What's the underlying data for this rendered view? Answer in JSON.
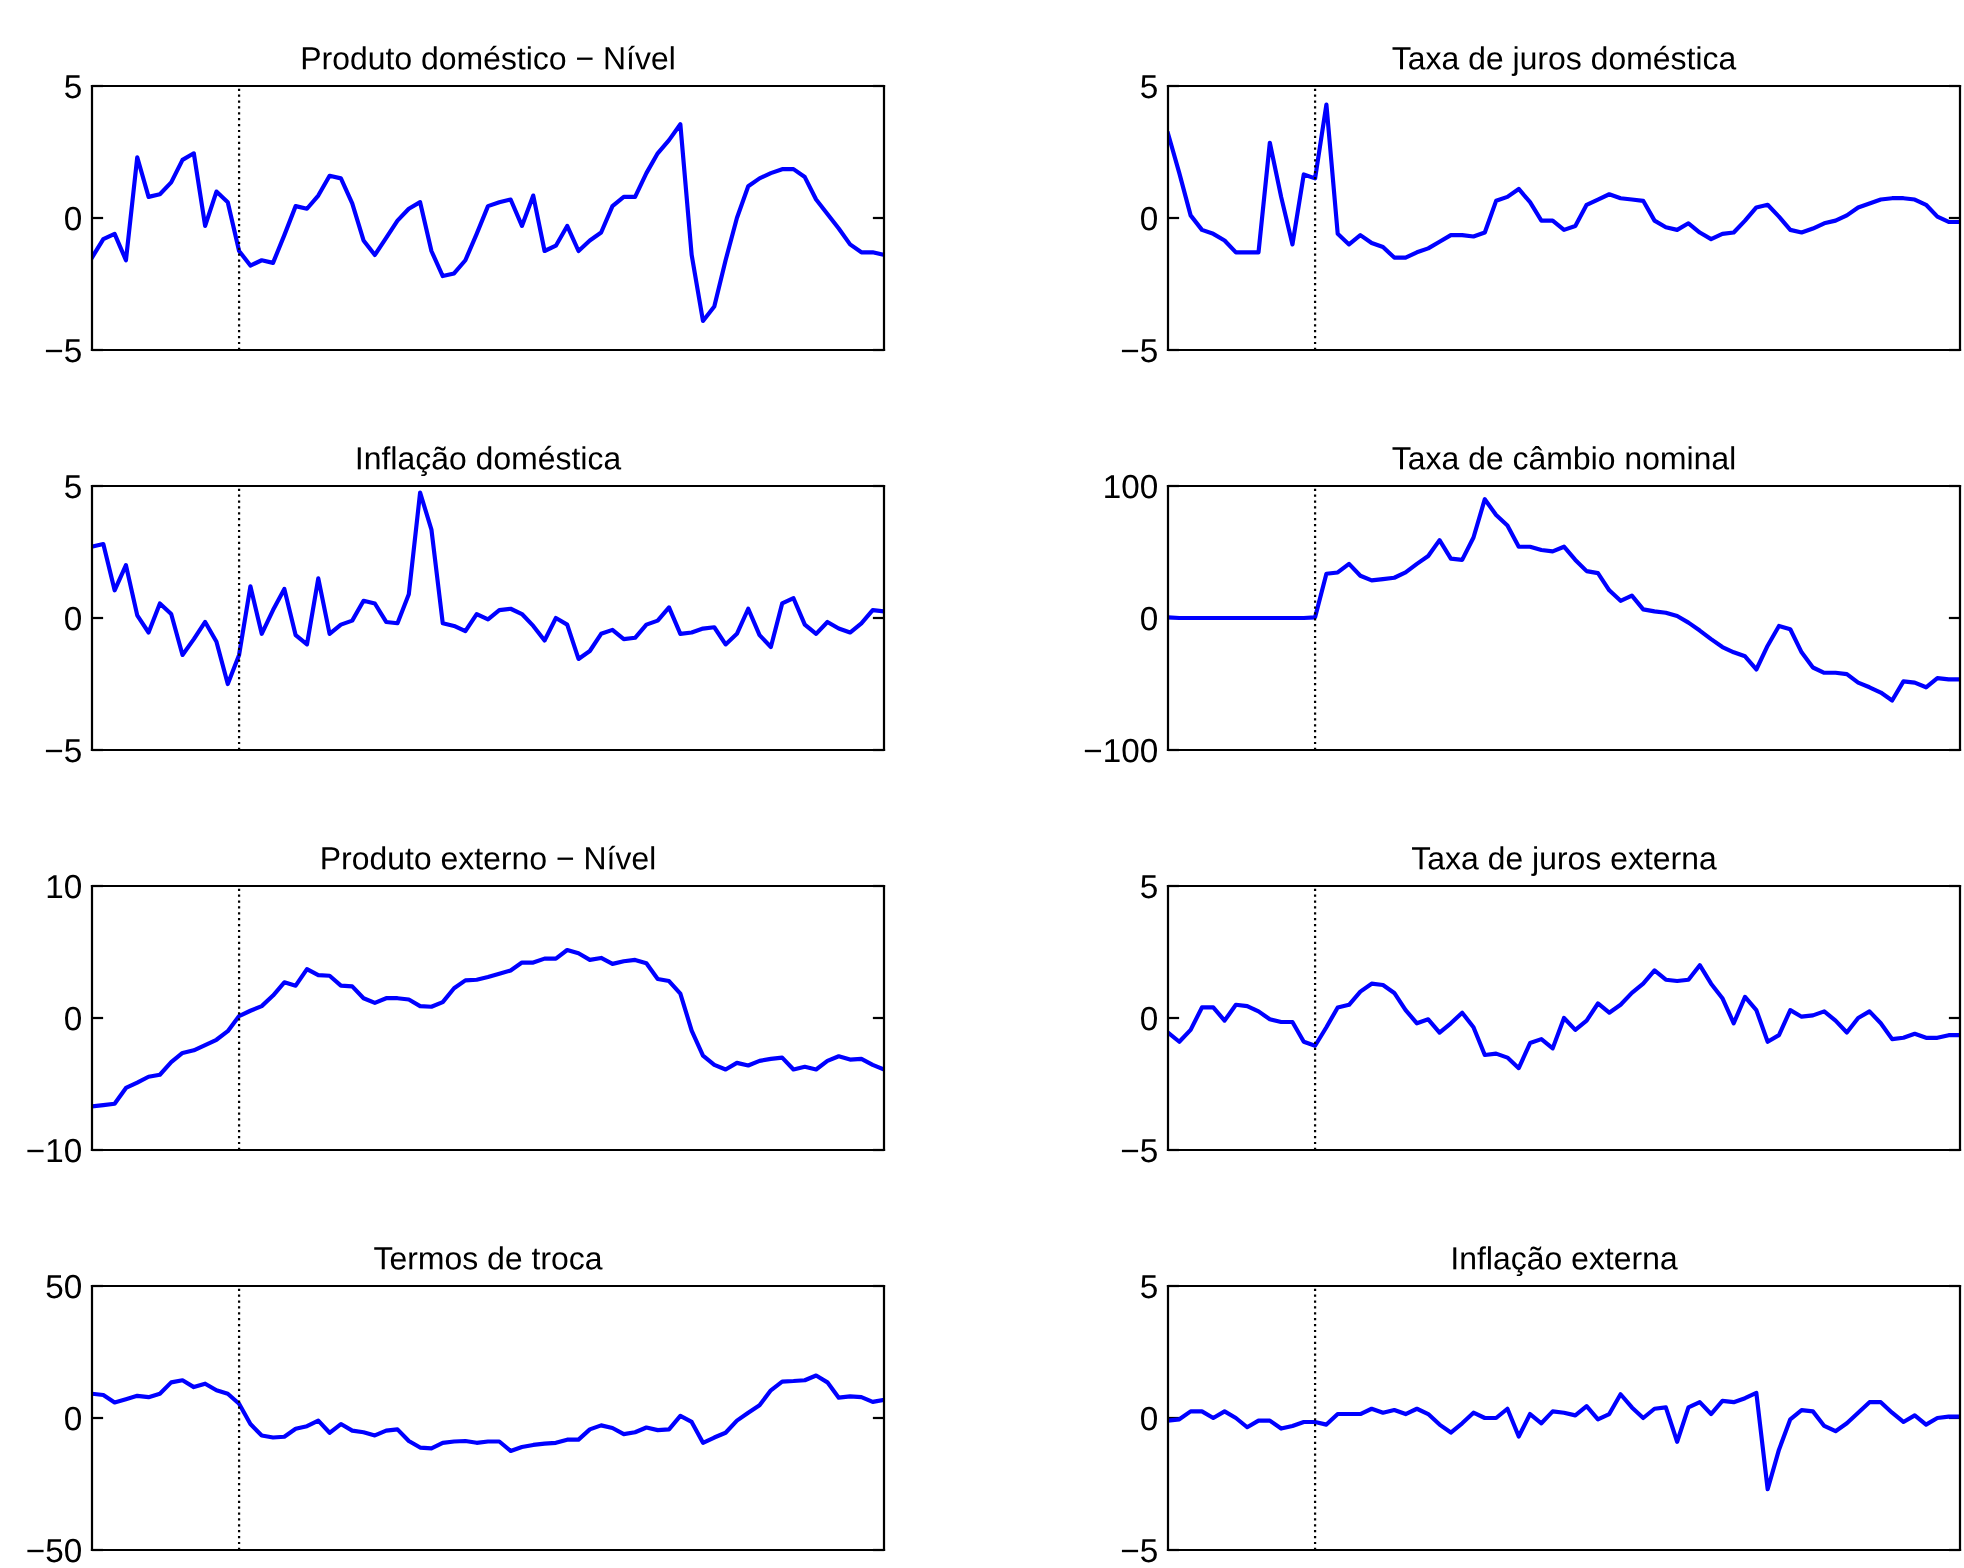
{
  "chart_data": [
    {
      "type": "line",
      "title": "Produto doméstico − Nível",
      "categories": [
        null,
        null,
        null,
        null,
        null,
        null,
        null,
        null,
        null,
        null,
        null,
        null,
        null,
        null,
        null,
        null,
        null,
        null,
        null,
        null,
        null,
        null,
        null,
        null,
        null,
        null,
        null,
        null,
        null,
        null,
        null,
        null,
        null,
        null,
        null,
        null,
        null,
        null,
        null,
        null,
        null,
        null,
        null,
        null,
        null,
        null,
        null,
        null,
        null,
        null,
        null,
        null,
        null,
        null,
        null,
        null,
        null,
        null,
        null,
        null,
        null,
        null,
        null,
        null,
        null,
        null,
        null,
        null,
        null,
        null,
        null
      ],
      "ylim": [
        -5,
        5
      ],
      "yticks": [
        {
          "value": -5,
          "label": "−5"
        },
        0,
        5
      ],
      "tick_labels": "y",
      "series": [
        {
          "color": "#0000ff",
          "values": [
            -1.5,
            -0.8,
            -0.6,
            -1.6,
            2.3,
            0.8,
            0.9,
            1.35,
            2.2,
            2.45,
            -0.3,
            1.0,
            0.6,
            -1.25,
            -1.8,
            -1.6,
            -1.7,
            -0.65,
            0.45,
            0.35,
            0.85,
            1.6,
            1.5,
            0.55,
            -0.85,
            -1.4,
            -0.75,
            -0.1,
            0.35,
            0.6,
            -1.25,
            -2.2,
            -2.1,
            -1.6,
            -0.6,
            0.45,
            0.6,
            0.7,
            -0.3,
            0.85,
            -1.25,
            -1.05,
            -0.3,
            -1.25,
            -0.85,
            -0.55,
            0.45,
            0.8,
            0.8,
            1.7,
            2.45,
            2.95,
            3.55,
            -1.4,
            -3.9,
            -3.35,
            -1.6,
            0.0,
            1.2,
            1.5,
            1.7,
            1.85,
            1.85,
            1.55,
            0.7,
            0.15,
            -0.4,
            -1.0,
            -1.3,
            -1.3,
            -1.4
          ]
        }
      ]
    },
    {
      "type": "line",
      "title": "Taxa de juros doméstica",
      "categories": [
        null,
        null,
        null,
        null,
        null,
        null,
        null,
        null,
        null,
        null,
        null,
        null,
        null,
        null,
        null,
        null,
        null,
        null,
        null,
        null,
        null,
        null,
        null,
        null,
        null,
        null,
        null,
        null,
        null,
        null,
        null,
        null,
        null,
        null,
        null,
        null,
        null,
        null,
        null,
        null,
        null,
        null,
        null,
        null,
        null,
        null,
        null,
        null,
        null,
        null,
        null,
        null,
        null,
        null,
        null,
        null,
        null,
        null,
        null,
        null,
        null,
        null,
        null,
        null,
        null,
        null,
        null,
        null,
        null,
        null,
        null
      ],
      "ylim": [
        -5,
        5
      ],
      "yticks": [
        {
          "value": -5,
          "label": "−5"
        },
        0,
        5
      ],
      "tick_labels": "y",
      "series": [
        {
          "color": "#0000ff",
          "values": [
            3.2,
            1.7,
            0.1,
            -0.45,
            -0.6,
            -0.85,
            -1.3,
            -1.3,
            -1.3,
            2.85,
            0.8,
            -1.0,
            1.65,
            1.5,
            4.3,
            -0.6,
            -1.0,
            -0.65,
            -0.95,
            -1.1,
            -1.5,
            -1.5,
            -1.3,
            -1.15,
            -0.9,
            -0.65,
            -0.65,
            -0.7,
            -0.55,
            0.65,
            0.8,
            1.1,
            0.6,
            -0.1,
            -0.1,
            -0.45,
            -0.3,
            0.5,
            0.7,
            0.9,
            0.75,
            0.7,
            0.65,
            -0.1,
            -0.35,
            -0.45,
            -0.2,
            -0.55,
            -0.8,
            -0.6,
            -0.55,
            -0.1,
            0.4,
            0.5,
            0.05,
            -0.45,
            -0.55,
            -0.4,
            -0.2,
            -0.1,
            0.1,
            0.4,
            0.55,
            0.7,
            0.75,
            0.75,
            0.7,
            0.5,
            0.05,
            -0.15,
            -0.15
          ]
        }
      ]
    },
    {
      "type": "line",
      "title": "Inflação doméstica",
      "categories": [
        null,
        null,
        null,
        null,
        null,
        null,
        null,
        null,
        null,
        null,
        null,
        null,
        null,
        null,
        null,
        null,
        null,
        null,
        null,
        null,
        null,
        null,
        null,
        null,
        null,
        null,
        null,
        null,
        null,
        null,
        null,
        null,
        null,
        null,
        null,
        null,
        null,
        null,
        null,
        null,
        null,
        null,
        null,
        null,
        null,
        null,
        null,
        null,
        null,
        null,
        null,
        null,
        null,
        null,
        null,
        null,
        null,
        null,
        null,
        null,
        null,
        null,
        null,
        null,
        null,
        null,
        null,
        null,
        null,
        null,
        null
      ],
      "ylim": [
        -5,
        5
      ],
      "yticks": [
        {
          "value": -5,
          "label": "−5"
        },
        0,
        5
      ],
      "tick_labels": "y",
      "series": [
        {
          "color": "#0000ff",
          "values": [
            2.7,
            2.8,
            1.05,
            2.0,
            0.1,
            -0.55,
            0.55,
            0.15,
            -1.4,
            -0.8,
            -0.15,
            -0.9,
            -2.5,
            -1.4,
            1.2,
            -0.6,
            0.3,
            1.1,
            -0.65,
            -1.0,
            1.5,
            -0.6,
            -0.25,
            -0.1,
            0.65,
            0.55,
            -0.15,
            -0.2,
            0.9,
            4.75,
            3.35,
            -0.2,
            -0.3,
            -0.5,
            0.15,
            -0.05,
            0.3,
            0.35,
            0.15,
            -0.3,
            -0.85,
            0.0,
            -0.25,
            -1.55,
            -1.25,
            -0.6,
            -0.45,
            -0.8,
            -0.75,
            -0.25,
            -0.1,
            0.4,
            -0.6,
            -0.55,
            -0.4,
            -0.35,
            -1.0,
            -0.6,
            0.35,
            -0.65,
            -1.1,
            0.55,
            0.75,
            -0.25,
            -0.6,
            -0.15,
            -0.4,
            -0.55,
            -0.2,
            0.3,
            0.25
          ]
        }
      ]
    },
    {
      "type": "line",
      "title": "Taxa de câmbio nominal",
      "categories": [
        null,
        null,
        null,
        null,
        null,
        null,
        null,
        null,
        null,
        null,
        null,
        null,
        null,
        null,
        null,
        null,
        null,
        null,
        null,
        null,
        null,
        null,
        null,
        null,
        null,
        null,
        null,
        null,
        null,
        null,
        null,
        null,
        null,
        null,
        null,
        null,
        null,
        null,
        null,
        null,
        null,
        null,
        null,
        null,
        null,
        null,
        null,
        null,
        null,
        null,
        null,
        null,
        null,
        null,
        null,
        null,
        null,
        null,
        null,
        null,
        null,
        null,
        null,
        null,
        null,
        null,
        null,
        null,
        null,
        null,
        null
      ],
      "ylim": [
        -100,
        100
      ],
      "yticks": [
        {
          "value": -100,
          "label": "−100"
        },
        0,
        100
      ],
      "tick_labels": "y",
      "series": [
        {
          "color": "#0000ff",
          "values": [
            0.5,
            0,
            0,
            0,
            0,
            0,
            0,
            0,
            0,
            0,
            0,
            0,
            0,
            0.5,
            33.5,
            34.5,
            41,
            32,
            28.5,
            29.5,
            30.5,
            34.5,
            41,
            47,
            59,
            45,
            44,
            61,
            90,
            78,
            70,
            54,
            54,
            51.5,
            50.5,
            54,
            44,
            35.5,
            34,
            21,
            13,
            17,
            6.5,
            5,
            4,
            1.5,
            -3.5,
            -9.5,
            -16,
            -22,
            -26,
            -29,
            -39,
            -21,
            -6,
            -8.5,
            -26,
            -37.5,
            -41.5,
            -41.5,
            -42.5,
            -49,
            -52.5,
            -56.5,
            -62.5,
            -48,
            -49,
            -52.5,
            -45.5,
            -46.5,
            -46.5
          ]
        }
      ]
    },
    {
      "type": "line",
      "title": "Produto externo − Nível",
      "categories": [
        null,
        null,
        null,
        null,
        null,
        null,
        null,
        null,
        null,
        null,
        null,
        null,
        null,
        null,
        null,
        null,
        null,
        null,
        null,
        null,
        null,
        null,
        null,
        null,
        null,
        null,
        null,
        null,
        null,
        null,
        null,
        null,
        null,
        null,
        null,
        null,
        null,
        null,
        null,
        null,
        null,
        null,
        null,
        null,
        null,
        null,
        null,
        null,
        null,
        null,
        null,
        null,
        null,
        null,
        null,
        null,
        null,
        null,
        null,
        null,
        null,
        null,
        null,
        null,
        null,
        null,
        null,
        null,
        null,
        null,
        null
      ],
      "ylim": [
        -10,
        10
      ],
      "yticks": [
        {
          "value": -10,
          "label": "−10"
        },
        0,
        10
      ],
      "tick_labels": "y",
      "series": [
        {
          "color": "#0000ff",
          "values": [
            -6.7,
            -6.6,
            -6.5,
            -5.3,
            -4.9,
            -4.45,
            -4.3,
            -3.35,
            -2.65,
            -2.45,
            -2.05,
            -1.65,
            -1.0,
            0.15,
            0.55,
            0.9,
            1.7,
            2.7,
            2.45,
            3.7,
            3.25,
            3.2,
            2.45,
            2.4,
            1.5,
            1.15,
            1.5,
            1.5,
            1.4,
            0.9,
            0.85,
            1.2,
            2.25,
            2.85,
            2.9,
            3.1,
            3.35,
            3.6,
            4.2,
            4.2,
            4.5,
            4.5,
            5.15,
            4.9,
            4.4,
            4.55,
            4.1,
            4.3,
            4.4,
            4.15,
            2.95,
            2.8,
            1.85,
            -0.95,
            -2.85,
            -3.55,
            -3.9,
            -3.4,
            -3.6,
            -3.25,
            -3.1,
            -3.0,
            -3.9,
            -3.7,
            -3.9,
            -3.25,
            -2.9,
            -3.15,
            -3.1,
            -3.55,
            -3.9
          ]
        }
      ]
    },
    {
      "type": "line",
      "title": "Taxa de juros externa",
      "categories": [
        null,
        null,
        null,
        null,
        null,
        null,
        null,
        null,
        null,
        null,
        null,
        null,
        null,
        null,
        null,
        null,
        null,
        null,
        null,
        null,
        null,
        null,
        null,
        null,
        null,
        null,
        null,
        null,
        null,
        null,
        null,
        null,
        null,
        null,
        null,
        null,
        null,
        null,
        null,
        null,
        null,
        null,
        null,
        null,
        null,
        null,
        null,
        null,
        null,
        null,
        null,
        null,
        null,
        null,
        null,
        null,
        null,
        null,
        null,
        null,
        null,
        null,
        null,
        null,
        null,
        null,
        null,
        null,
        null,
        null,
        null
      ],
      "ylim": [
        -5,
        5
      ],
      "yticks": [
        {
          "value": -5,
          "label": "−5"
        },
        0,
        5
      ],
      "tick_labels": "y",
      "series": [
        {
          "color": "#0000ff",
          "values": [
            -0.55,
            -0.9,
            -0.45,
            0.4,
            0.4,
            -0.1,
            0.5,
            0.45,
            0.25,
            -0.05,
            -0.15,
            -0.15,
            -0.9,
            -1.05,
            -0.35,
            0.4,
            0.5,
            1.0,
            1.3,
            1.25,
            0.95,
            0.3,
            -0.2,
            -0.05,
            -0.55,
            -0.2,
            0.2,
            -0.35,
            -1.4,
            -1.35,
            -1.5,
            -1.9,
            -0.95,
            -0.8,
            -1.15,
            0.0,
            -0.45,
            -0.1,
            0.55,
            0.2,
            0.5,
            0.95,
            1.3,
            1.8,
            1.45,
            1.4,
            1.45,
            2.0,
            1.3,
            0.75,
            -0.2,
            0.8,
            0.3,
            -0.9,
            -0.65,
            0.3,
            0.05,
            0.1,
            0.25,
            -0.1,
            -0.55,
            0.0,
            0.25,
            -0.2,
            -0.8,
            -0.75,
            -0.6,
            -0.75,
            -0.75,
            -0.65,
            -0.65
          ]
        }
      ]
    },
    {
      "type": "line",
      "title": "Termos de troca",
      "categories": [
        null,
        null,
        null,
        null,
        null,
        null,
        null,
        null,
        null,
        null,
        null,
        null,
        null,
        null,
        null,
        null,
        null,
        null,
        null,
        null,
        null,
        null,
        null,
        null,
        null,
        null,
        null,
        null,
        null,
        null,
        null,
        null,
        null,
        null,
        null,
        null,
        null,
        null,
        null,
        null,
        null,
        null,
        null,
        null,
        null,
        null,
        null,
        null,
        null,
        null,
        null,
        null,
        null,
        null,
        null,
        null,
        null,
        null,
        null,
        null,
        null,
        null,
        null,
        null,
        null,
        null,
        null,
        null,
        null,
        null,
        null
      ],
      "ylim": [
        -50,
        50
      ],
      "yticks": [
        {
          "value": -50,
          "label": "−50"
        },
        0,
        50
      ],
      "tick_labels": "y",
      "series": [
        {
          "color": "#0000ff",
          "values": [
            9.2,
            8.7,
            5.9,
            7.1,
            8.4,
            7.9,
            9.2,
            13.5,
            14.3,
            11.7,
            13.0,
            10.5,
            9.2,
            5.4,
            -2.3,
            -6.6,
            -7.4,
            -7.1,
            -4.1,
            -3.1,
            -1.0,
            -5.6,
            -2.3,
            -4.8,
            -5.4,
            -6.6,
            -4.8,
            -4.3,
            -8.7,
            -11.2,
            -11.5,
            -9.4,
            -8.9,
            -8.7,
            -9.4,
            -8.9,
            -8.9,
            -12.5,
            -11.0,
            -10.2,
            -9.7,
            -9.4,
            -8.2,
            -8.2,
            -4.3,
            -2.8,
            -3.8,
            -6.1,
            -5.4,
            -3.6,
            -4.6,
            -4.3,
            0.8,
            -1.5,
            -9.4,
            -7.4,
            -5.6,
            -1.0,
            2.0,
            4.8,
            10.5,
            13.8,
            14.0,
            14.3,
            16.1,
            13.5,
            7.7,
            8.2,
            7.9,
            6.1,
            6.9
          ]
        }
      ]
    },
    {
      "type": "line",
      "title": "Inflação externa",
      "categories": [
        null,
        null,
        null,
        null,
        null,
        null,
        null,
        null,
        null,
        null,
        null,
        null,
        null,
        null,
        null,
        null,
        null,
        null,
        null,
        null,
        null,
        null,
        null,
        null,
        null,
        null,
        null,
        null,
        null,
        null,
        null,
        null,
        null,
        null,
        null,
        null,
        null,
        null,
        null,
        null,
        null,
        null,
        null,
        null,
        null,
        null,
        null,
        null,
        null,
        null,
        null,
        null,
        null,
        null,
        null,
        null,
        null,
        null,
        null,
        null,
        null,
        null,
        null,
        null,
        null,
        null,
        null,
        null,
        null,
        null,
        null
      ],
      "ylim": [
        -5,
        5
      ],
      "yticks": [
        {
          "value": -5,
          "label": "−5"
        },
        0,
        5
      ],
      "tick_labels": "y",
      "series": [
        {
          "color": "#0000ff",
          "values": [
            -0.1,
            -0.05,
            0.25,
            0.25,
            0.0,
            0.25,
            0.0,
            -0.35,
            -0.1,
            -0.1,
            -0.4,
            -0.3,
            -0.15,
            -0.15,
            -0.25,
            0.15,
            0.15,
            0.15,
            0.35,
            0.2,
            0.3,
            0.15,
            0.35,
            0.15,
            -0.25,
            -0.55,
            -0.2,
            0.2,
            0.0,
            0.0,
            0.35,
            -0.7,
            0.15,
            -0.2,
            0.25,
            0.2,
            0.1,
            0.45,
            -0.05,
            0.15,
            0.9,
            0.4,
            0.0,
            0.35,
            0.4,
            -0.9,
            0.4,
            0.6,
            0.15,
            0.65,
            0.6,
            0.75,
            0.95,
            -2.7,
            -1.2,
            -0.05,
            0.3,
            0.25,
            -0.3,
            -0.5,
            -0.2,
            0.2,
            0.6,
            0.6,
            0.2,
            -0.15,
            0.1,
            -0.25,
            0.0,
            0.05,
            0.05
          ]
        }
      ]
    }
  ]
}
